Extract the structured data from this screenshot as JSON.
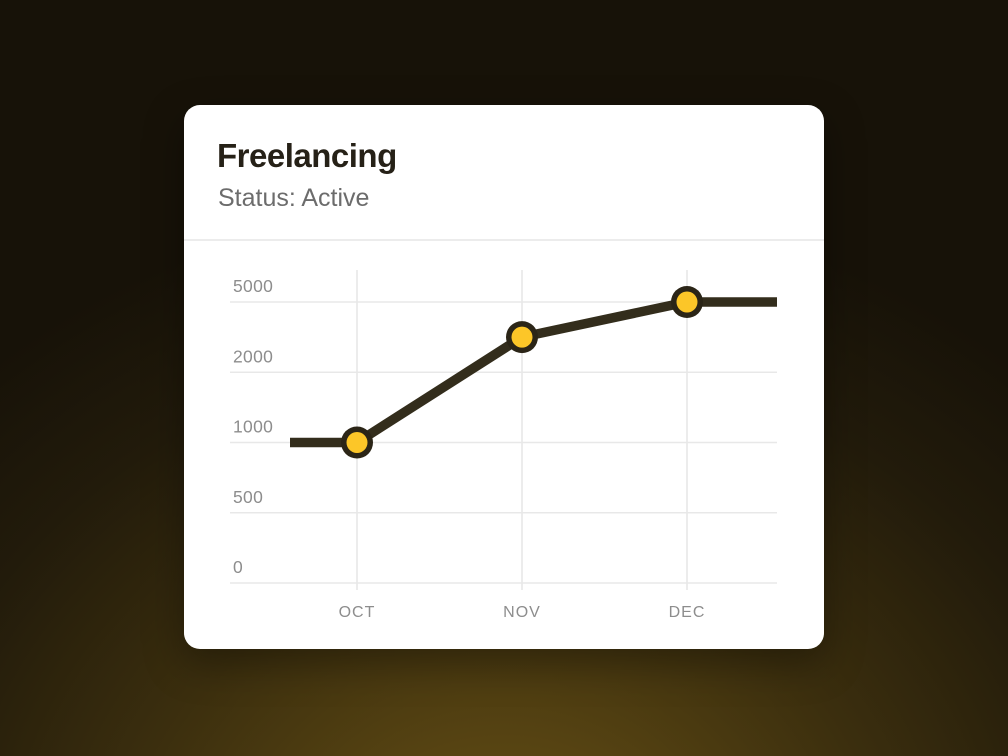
{
  "background": {
    "base_color": "#171208",
    "glow_color": "#66511a"
  },
  "card": {
    "title": "Freelancing",
    "status_label": "Status: Active"
  },
  "chart_data": {
    "type": "line",
    "title": "",
    "xlabel": "",
    "ylabel": "",
    "categories": [
      "OCT",
      "NOV",
      "DEC"
    ],
    "values": [
      1000,
      3500,
      5000
    ],
    "y_ticks": [
      0,
      500,
      1000,
      2000,
      5000
    ],
    "ylim": [
      0,
      5000
    ],
    "grid": true,
    "legend": "none",
    "axis_scale": "piecewise-equal-tick-spacing",
    "line_extends_to_plot_edges": true,
    "colors": {
      "line": "#332d1c",
      "marker_ring": "#2b2517",
      "marker_fill": "#fcc628",
      "gridline": "#e8e8e8",
      "tick_label": "#8d8d8d"
    }
  }
}
